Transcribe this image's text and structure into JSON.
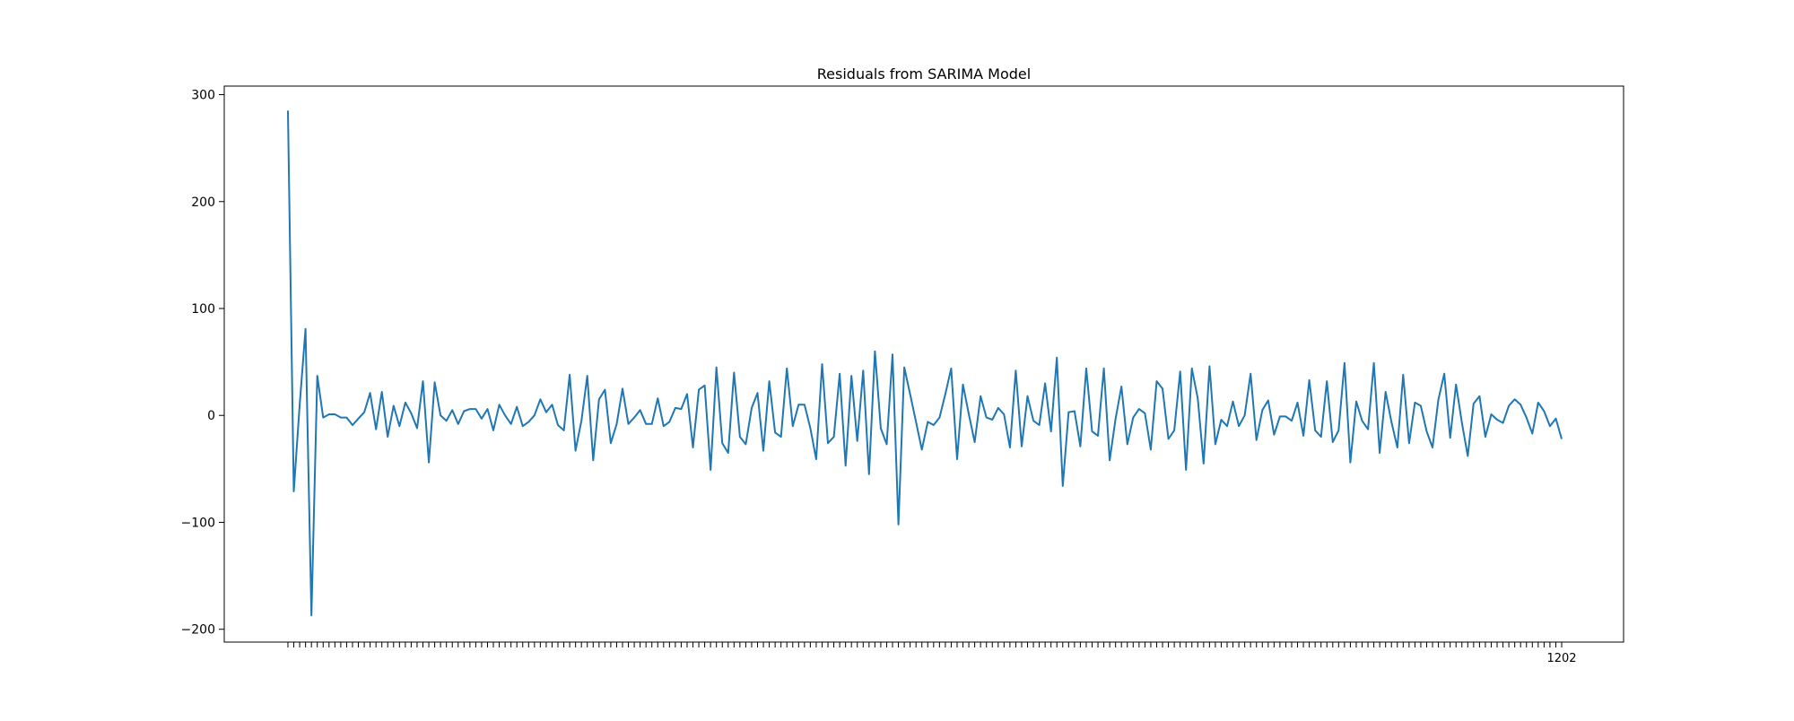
{
  "chart_data": {
    "type": "line",
    "title": "Residuals from SARIMA Model",
    "xlabel": "",
    "ylabel": "",
    "ylim": [
      -212,
      308
    ],
    "yticks": [
      -200,
      -100,
      0,
      100,
      200,
      300
    ],
    "ytick_labels": [
      "−200",
      "−100",
      "0",
      "100",
      "200",
      "300"
    ],
    "x_tick_labels_note": "Dense, overlapping date tick labels along the x-axis; ends with 1202",
    "last_x_label": "1202",
    "line_color": "#1f77b4",
    "grid": false,
    "legend": "none",
    "series": [
      {
        "values": [
          285,
          -71,
          10,
          81,
          -187,
          37,
          -2,
          1,
          1,
          -2,
          -2,
          -9,
          -3,
          3,
          21,
          -13,
          22,
          -20,
          9,
          -10,
          12,
          2,
          -12,
          32,
          -44,
          31,
          0,
          -5,
          5,
          -8,
          4,
          6,
          6,
          -3,
          6,
          -14,
          10,
          0,
          -8,
          8,
          -10,
          -6,
          0,
          15,
          3,
          10,
          -9,
          -14,
          38,
          -33,
          -5,
          37,
          -42,
          15,
          24,
          -26,
          -8,
          25,
          -8,
          -2,
          5,
          -8,
          -8,
          16,
          -10,
          -6,
          7,
          6,
          20,
          -30,
          24,
          28,
          -51,
          45,
          -26,
          -35,
          40,
          -20,
          -27,
          7,
          21,
          -33,
          32,
          -16,
          -20,
          44,
          -10,
          10,
          10,
          -12,
          -41,
          48,
          -26,
          -20,
          39,
          -47,
          37,
          -24,
          42,
          -55,
          60,
          -12,
          -27,
          57,
          -102,
          45,
          20,
          -6,
          -32,
          -6,
          -9,
          -2,
          20,
          44,
          -41,
          29,
          1,
          -25,
          18,
          -2,
          -4,
          7,
          1,
          -30,
          42,
          -29,
          18,
          -5,
          -9,
          30,
          -15,
          54,
          -66,
          3,
          4,
          -29,
          44,
          -15,
          -19,
          44,
          -42,
          -3,
          27,
          -27,
          -2,
          6,
          2,
          -32,
          32,
          25,
          -22,
          -14,
          41,
          -51,
          44,
          16,
          -45,
          46,
          -27,
          -4,
          -10,
          13,
          -10,
          0,
          39,
          -23,
          5,
          14,
          -18,
          -1,
          -1,
          -5,
          12,
          -19,
          33,
          -14,
          -20,
          32,
          -25,
          -14,
          49,
          -44,
          13,
          -5,
          -13,
          49,
          -35,
          22,
          -6,
          -30,
          38,
          -26,
          12,
          9,
          -15,
          -30,
          15,
          39,
          -21,
          29,
          -7,
          -38,
          11,
          18,
          -20,
          1,
          -4,
          -7,
          9,
          15,
          10,
          -2,
          -17,
          12,
          4,
          -10,
          -3,
          -22
        ]
      }
    ]
  }
}
